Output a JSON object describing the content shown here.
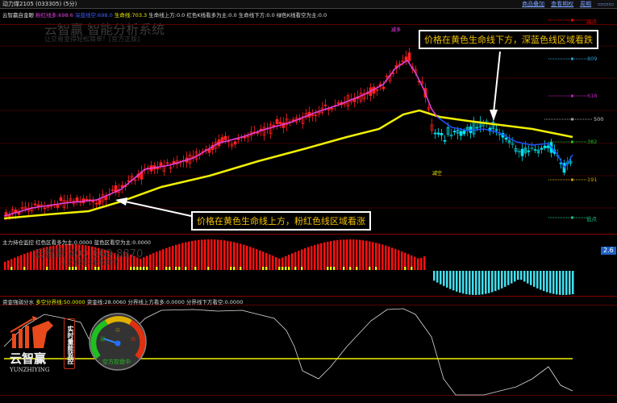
{
  "window": {
    "title": "动力煤2105 (033305) (5分)"
  },
  "menu": {
    "items": [
      "商品叠加",
      "查看期权",
      "周期"
    ]
  },
  "main_panel": {
    "name": "云智赢自金眼",
    "pink_label": "粉红线多:698.6",
    "blue_label": "深蓝线空:698.0",
    "life_label": "生命线:703.3",
    "stats": "生命线上方:0.0 红色K线看多为主:0.0 生命线下方:0.0 绿色K线看空为主:0.0",
    "watermark_title": "云智赢 智能分析系统",
    "watermark_sub": "让交易变得轻松简单！[官方正版]",
    "levels": {
      "high": "高点",
      "l809": "809",
      "l618": "618",
      "l500": "500",
      "l382": "382",
      "l191": "191",
      "low": "低点"
    },
    "signals": {
      "buy": "减多",
      "sell": "减空"
    },
    "annotation_bear": "价格在黄色生命线下方，深蓝色线区域看跌",
    "annotation_bull": "价格在黄色生命线上方，粉红色线区域看涨",
    "colors": {
      "pink": "#e040e0",
      "blue": "#2050ff",
      "life": "#f0f000",
      "up": "#ff0000",
      "down": "#00e0f0"
    }
  },
  "position_panel": {
    "title": "主力持仓监控",
    "stats": "红色区看多为主:0.0000 蓝色区看空为主:0.0000",
    "watermark_phone": "云智赢 400-669-8870",
    "watermark_sub": "让交易变得轻松简单",
    "scale_value": "2.6"
  },
  "money_panel": {
    "title": "资金强弱分水",
    "divider_label": "多空分界线:50.0000",
    "money_line": "资金线:28.0060",
    "above": "分界线上方看多:0.0000",
    "below": "分界线下方看空:0.0000",
    "logo_cn": "云智赢",
    "logo_en": "YUNZHIYING",
    "badge": "实时量能监控",
    "gauge": {
      "weak": "弱",
      "mid": "中",
      "strong": "强",
      "status": "空方控盘中",
      "needle_level": 0.2
    }
  }
}
